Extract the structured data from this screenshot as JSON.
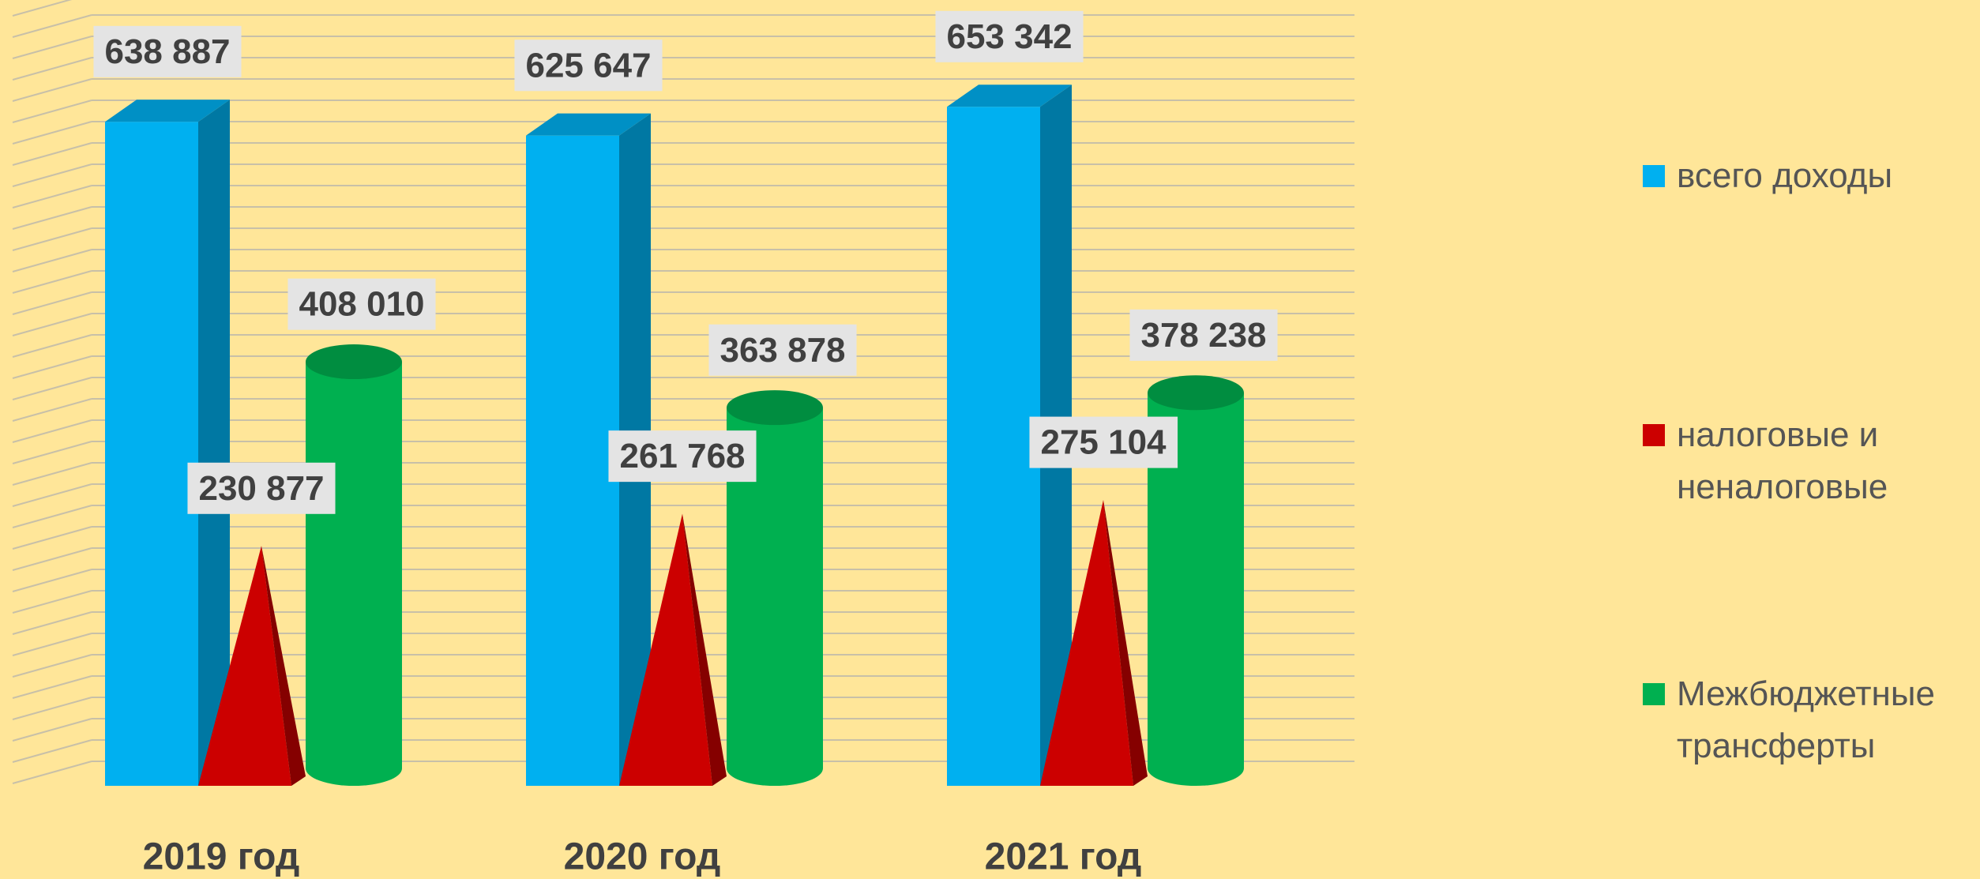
{
  "chart_data": {
    "type": "bar3d",
    "categories": [
      "2019 год",
      "2020 год",
      "2021 год"
    ],
    "series": [
      {
        "name": "всего доходы",
        "color": "#00b0f0",
        "shape": "box",
        "values": [
          638887,
          625647,
          653342
        ],
        "value_labels": [
          "638 887",
          "625 647",
          "653 342"
        ]
      },
      {
        "name": "налоговые и неналоговые",
        "color": "#cc0000",
        "shape": "cone",
        "values": [
          230877,
          261768,
          275104
        ],
        "value_labels": [
          "230 877",
          "261 768",
          "275 104"
        ]
      },
      {
        "name": "Межбюджетные трансферты",
        "color": "#00b050",
        "shape": "cylinder",
        "values": [
          408010,
          363878,
          378238
        ],
        "value_labels": [
          "408 010",
          "363 878",
          "378 238"
        ]
      }
    ],
    "ylim": [
      0,
      750000
    ],
    "grid": true,
    "legend": "right"
  }
}
